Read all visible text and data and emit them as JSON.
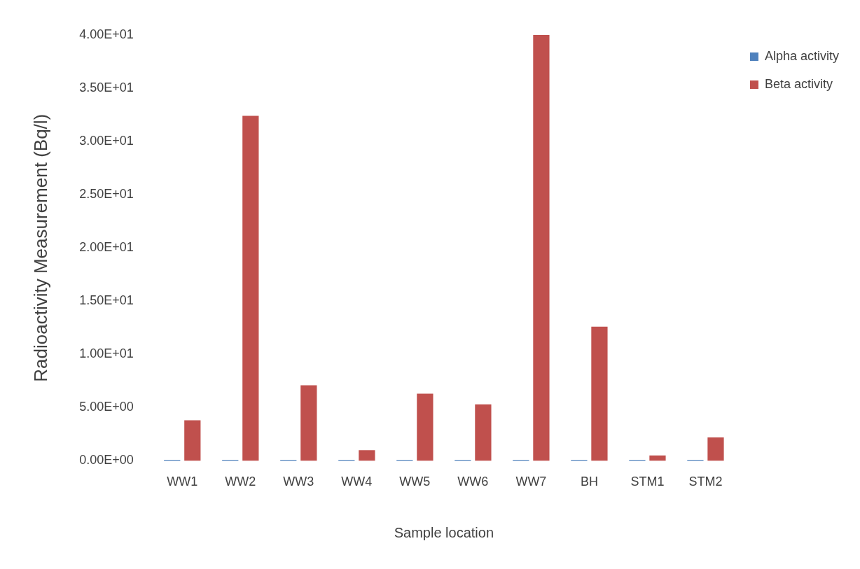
{
  "chart_data": {
    "type": "bar",
    "xlabel": "Sample location",
    "ylabel": "Radioactivity Measurement (Bq/l)",
    "categories": [
      "WW1",
      "WW2",
      "WW3",
      "WW4",
      "WW5",
      "WW6",
      "WW7",
      "BH",
      "STM1",
      "STM2"
    ],
    "series": [
      {
        "name": "Alpha activity",
        "color": "#4f81bd",
        "values": [
          0.1,
          0.1,
          0.1,
          0.1,
          0.1,
          0.1,
          0.1,
          0.1,
          0.1,
          0.1
        ]
      },
      {
        "name": "Beta activity",
        "color": "#c0504d",
        "values": [
          3.8,
          32.4,
          7.1,
          1.0,
          6.3,
          5.3,
          40,
          12.6,
          0.5,
          2.2
        ]
      }
    ],
    "ylim": [
      0,
      40
    ],
    "yticks": [
      {
        "value": 0,
        "label": "0.00E+00"
      },
      {
        "value": 5,
        "label": "5.00E+00"
      },
      {
        "value": 10,
        "label": "1.00E+01"
      },
      {
        "value": 15,
        "label": "1.50E+01"
      },
      {
        "value": 20,
        "label": "2.00E+01"
      },
      {
        "value": 25,
        "label": "2.50E+01"
      },
      {
        "value": 30,
        "label": "3.00E+01"
      },
      {
        "value": 35,
        "label": "3.50E+01"
      },
      {
        "value": 40,
        "label": "4.00E+01"
      }
    ],
    "grid": false,
    "legend": "right"
  }
}
